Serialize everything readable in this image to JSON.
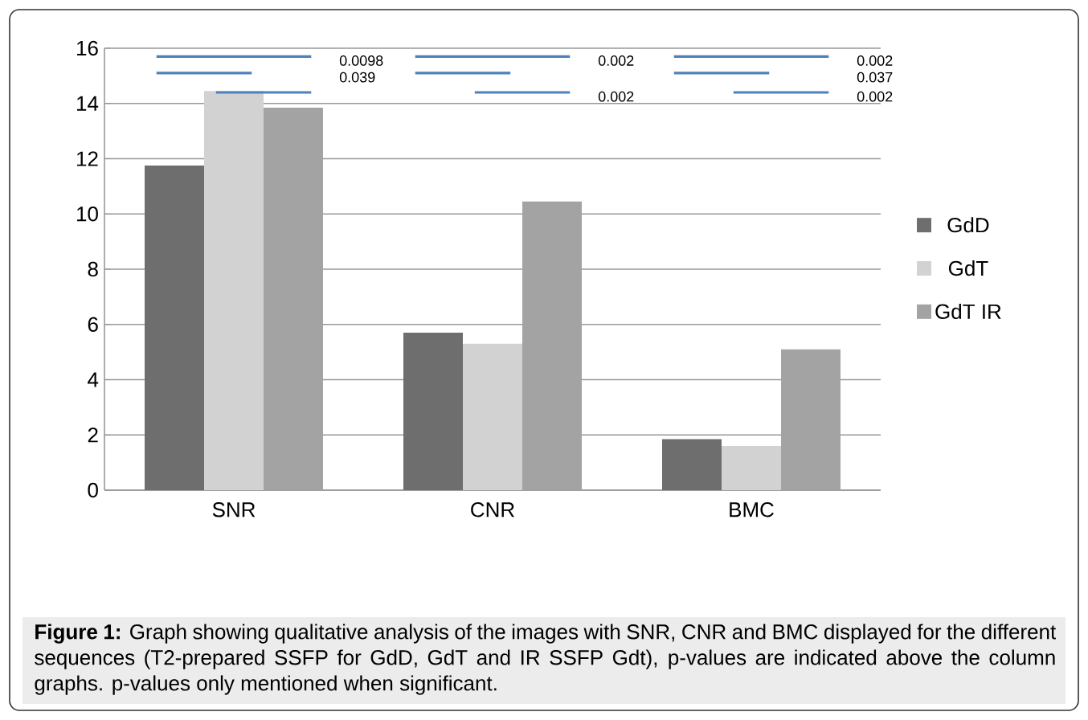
{
  "chart_data": {
    "type": "bar",
    "categories": [
      "SNR",
      "CNR",
      "BMC"
    ],
    "series": [
      {
        "name": "GdD",
        "color": "#6e6e6e",
        "values": [
          11.75,
          5.7,
          1.85
        ]
      },
      {
        "name": "GdT",
        "color": "#d2d2d2",
        "values": [
          14.45,
          5.3,
          1.6
        ]
      },
      {
        "name": "GdT IR",
        "color": "#a3a3a3",
        "values": [
          13.85,
          10.45,
          5.1
        ]
      }
    ],
    "ylim": [
      0,
      16
    ],
    "yticks": [
      0,
      2,
      4,
      6,
      8,
      10,
      12,
      14,
      16
    ],
    "grid": "y",
    "legend": "right",
    "annotations": [
      "0.0098",
      "0.039",
      "0.002",
      "0.002",
      "0.002",
      "0.037",
      "0.002",
      "**Figure 1:** Graph showing qualitative analysis of the images with SNR, CNR and BMC displayed for the different sequences (T2-prepared SSFP for GdD, GdT and IR SSFP Gdt), p-values are indicated above the column graphs. p-values only mentioned when significant."
    ]
  }
}
